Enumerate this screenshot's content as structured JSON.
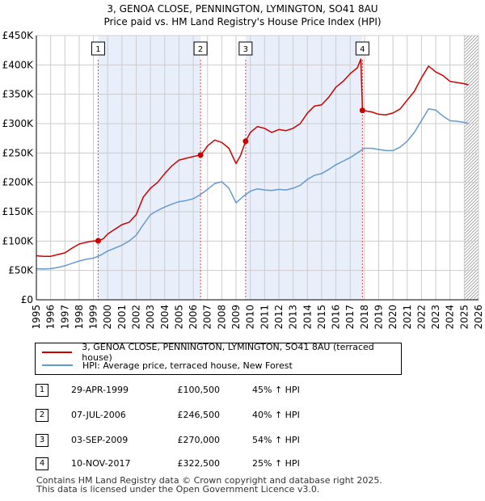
{
  "title_line1": "3, GENOA CLOSE, PENNINGTON, LYMINGTON, SO41 8AU",
  "title_line2": "Price paid vs. HM Land Registry's House Price Index (HPI)",
  "colors": {
    "red": "#cc0000",
    "blue": "#6699cc",
    "shade": "#e8eefa",
    "grid": "#cccccc"
  },
  "chart_data": {
    "type": "line",
    "ylim": [
      0,
      450000
    ],
    "xlim": [
      1995,
      2026
    ],
    "y_ticks": [
      0,
      50000,
      100000,
      150000,
      200000,
      250000,
      300000,
      350000,
      400000,
      450000
    ],
    "y_tick_labels": [
      "£0",
      "£50K",
      "£100K",
      "£150K",
      "£200K",
      "£250K",
      "£300K",
      "£350K",
      "£400K",
      "£450K"
    ],
    "x_ticks": [
      "1995",
      "1996",
      "1997",
      "1998",
      "1999",
      "2000",
      "2001",
      "2002",
      "2003",
      "2004",
      "2005",
      "2006",
      "2007",
      "2008",
      "2009",
      "2010",
      "2011",
      "2012",
      "2013",
      "2014",
      "2015",
      "2016",
      "2017",
      "2018",
      "2019",
      "2020",
      "2021",
      "2022",
      "2023",
      "2024",
      "2025",
      "2026"
    ],
    "series": [
      {
        "name": "3, GENOA CLOSE, PENNINGTON, LYMINGTON, SO41 8AU (terraced house)",
        "color": "#cc0000",
        "x": [
          1995,
          1995.5,
          1996,
          1996.5,
          1997,
          1997.5,
          1998,
          1998.5,
          1999,
          1999.33,
          1999.7,
          2000,
          2000.5,
          2001,
          2001.5,
          2002,
          2002.5,
          2003,
          2003.5,
          2004,
          2004.5,
          2005,
          2005.5,
          2006,
          2006.51,
          2006.8,
          2007,
          2007.5,
          2008,
          2008.5,
          2009,
          2009.3,
          2009.67,
          2010,
          2010.5,
          2011,
          2011.5,
          2012,
          2012.5,
          2013,
          2013.5,
          2014,
          2014.5,
          2015,
          2015.5,
          2016,
          2016.5,
          2017,
          2017.5,
          2017.75,
          2017.86,
          2018,
          2018.5,
          2019,
          2019.5,
          2020,
          2020.5,
          2021,
          2021.5,
          2022,
          2022.5,
          2023,
          2023.5,
          2024,
          2024.5,
          2025,
          2025.3
        ],
        "y": [
          75000,
          74000,
          74000,
          77000,
          80000,
          88000,
          95000,
          98000,
          100000,
          100500,
          104000,
          112000,
          120000,
          128000,
          132000,
          145000,
          175000,
          190000,
          200000,
          215000,
          228000,
          238000,
          241000,
          244000,
          246500,
          255000,
          262000,
          272000,
          268000,
          258000,
          232000,
          245000,
          270000,
          285000,
          295000,
          292000,
          285000,
          290000,
          288000,
          292000,
          300000,
          318000,
          330000,
          332000,
          345000,
          362000,
          372000,
          385000,
          395000,
          410000,
          322500,
          322000,
          320000,
          316000,
          315000,
          318000,
          325000,
          340000,
          355000,
          378000,
          398000,
          388000,
          382000,
          372000,
          370000,
          368000,
          366000
        ]
      },
      {
        "name": "HPI: Average price, terraced house, New Forest",
        "color": "#6699cc",
        "x": [
          1995,
          1995.5,
          1996,
          1996.5,
          1997,
          1997.5,
          1998,
          1998.5,
          1999,
          1999.5,
          2000,
          2000.5,
          2001,
          2001.5,
          2002,
          2002.5,
          2003,
          2003.5,
          2004,
          2004.5,
          2005,
          2005.5,
          2006,
          2006.5,
          2007,
          2007.5,
          2008,
          2008.5,
          2009,
          2009.5,
          2010,
          2010.5,
          2011,
          2011.5,
          2012,
          2012.5,
          2013,
          2013.5,
          2014,
          2014.5,
          2015,
          2015.5,
          2016,
          2016.5,
          2017,
          2017.5,
          2018,
          2018.5,
          2019,
          2019.5,
          2020,
          2020.5,
          2021,
          2021.5,
          2022,
          2022.5,
          2023,
          2023.5,
          2024,
          2024.5,
          2025,
          2025.3
        ],
        "y": [
          53000,
          52500,
          53000,
          55000,
          58000,
          62000,
          66000,
          69000,
          71000,
          76000,
          83000,
          88000,
          93000,
          100000,
          110000,
          128000,
          145000,
          152000,
          158000,
          163000,
          167000,
          169000,
          172000,
          179000,
          188000,
          198000,
          201000,
          190000,
          165000,
          176000,
          185000,
          189000,
          187000,
          186000,
          188000,
          187000,
          190000,
          195000,
          205000,
          212000,
          215000,
          222000,
          230000,
          236000,
          242000,
          250000,
          258000,
          258000,
          256000,
          254000,
          254000,
          260000,
          270000,
          285000,
          305000,
          325000,
          323000,
          313000,
          305000,
          304000,
          302000,
          300000
        ]
      }
    ],
    "markers": [
      {
        "id": "1",
        "x": 1999.33,
        "y": 100500
      },
      {
        "id": "2",
        "x": 2006.51,
        "y": 246500
      },
      {
        "id": "3",
        "x": 2009.67,
        "y": 270000
      },
      {
        "id": "4",
        "x": 2017.86,
        "y": 322500
      }
    ],
    "shaded_ranges": [
      [
        1999.33,
        2006.51
      ],
      [
        2009.67,
        2017.86
      ]
    ],
    "future_hatch_from": 2025.0
  },
  "legend": {
    "red_label": "3, GENOA CLOSE, PENNINGTON, LYMINGTON, SO41 8AU (terraced house)",
    "blue_label": "HPI: Average price, terraced house, New Forest"
  },
  "transactions": [
    {
      "id": "1",
      "date": "29-APR-1999",
      "price": "£100,500",
      "hpi": "45% ↑ HPI"
    },
    {
      "id": "2",
      "date": "07-JUL-2006",
      "price": "£246,500",
      "hpi": "40% ↑ HPI"
    },
    {
      "id": "3",
      "date": "03-SEP-2009",
      "price": "£270,000",
      "hpi": "54% ↑ HPI"
    },
    {
      "id": "4",
      "date": "10-NOV-2017",
      "price": "£322,500",
      "hpi": "25% ↑ HPI"
    }
  ],
  "footer_line1": "Contains HM Land Registry data © Crown copyright and database right 2025.",
  "footer_line2": "This data is licensed under the Open Government Licence v3.0."
}
